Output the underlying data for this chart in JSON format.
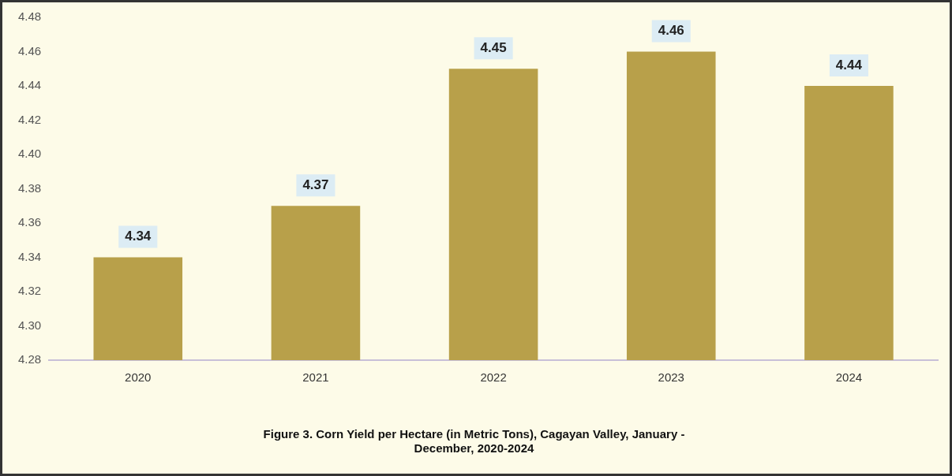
{
  "chart_data": {
    "type": "bar",
    "title": "Figure 3. Corn Yield per Hectare (in Metric Tons), Cagayan Valley, January - December, 2020-2024",
    "categories": [
      "2020",
      "2021",
      "2022",
      "2023",
      "2024"
    ],
    "values": [
      4.34,
      4.37,
      4.45,
      4.46,
      4.44
    ],
    "color": "#b8a04a",
    "ylim": [
      4.28,
      4.48
    ],
    "yticks": [
      {
        "value": 4.28,
        "label": "4.28"
      },
      {
        "value": 4.3,
        "label": "4.30"
      },
      {
        "value": 4.32,
        "label": "4.32"
      },
      {
        "value": 4.34,
        "label": "4.34"
      },
      {
        "value": 4.36,
        "label": "4.36"
      },
      {
        "value": 4.38,
        "label": "4.38"
      },
      {
        "value": 4.4,
        "label": "4.40"
      },
      {
        "value": 4.42,
        "label": "4.42"
      },
      {
        "value": 4.44,
        "label": "4.44"
      },
      {
        "value": 4.46,
        "label": "4.46"
      },
      {
        "value": 4.48,
        "label": "4.48"
      }
    ],
    "grid": false,
    "legend": false,
    "data_labels": true
  }
}
